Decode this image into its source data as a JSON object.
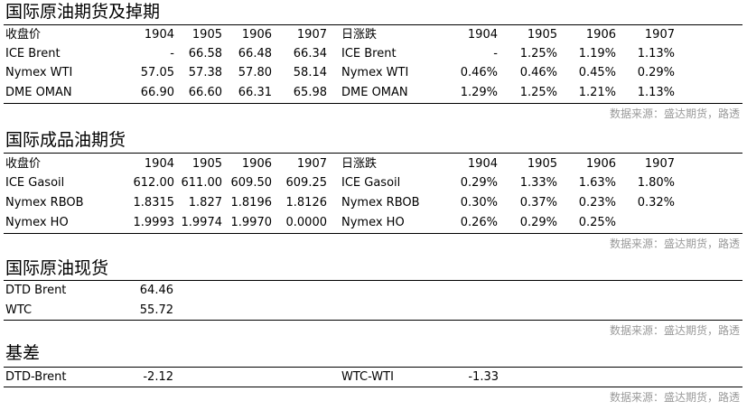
{
  "crude_futures": {
    "title": "国际原油期货及掉期",
    "settle_label": "收盘价",
    "change_label": "日涨跌",
    "months": [
      "1904",
      "1905",
      "1906",
      "1907"
    ],
    "rows": [
      {
        "name": "ICE Brent",
        "prices": [
          "-",
          "66.58",
          "66.48",
          "66.34"
        ],
        "changes": [
          "-",
          "1.25%",
          "1.19%",
          "1.13%"
        ]
      },
      {
        "name": "Nymex WTI",
        "prices": [
          "57.05",
          "57.38",
          "57.80",
          "58.14"
        ],
        "changes": [
          "0.46%",
          "0.46%",
          "0.45%",
          "0.29%"
        ]
      },
      {
        "name": "DME OMAN",
        "prices": [
          "66.90",
          "66.60",
          "66.31",
          "65.98"
        ],
        "changes": [
          "1.29%",
          "1.25%",
          "1.21%",
          "1.13%"
        ]
      }
    ],
    "source": "数据来源：盛达期货，路透"
  },
  "product_futures": {
    "title": "国际成品油期货",
    "settle_label": "收盘价",
    "change_label": "日涨跌",
    "months": [
      "1904",
      "1905",
      "1906",
      "1907"
    ],
    "rows": [
      {
        "name": "ICE Gasoil",
        "prices": [
          "612.00",
          "611.00",
          "609.50",
          "609.25"
        ],
        "changes": [
          "0.29%",
          "1.33%",
          "1.63%",
          "1.80%"
        ]
      },
      {
        "name": "Nymex RBOB",
        "prices": [
          "1.8315",
          "1.827",
          "1.8196",
          "1.8126"
        ],
        "changes": [
          "0.30%",
          "0.37%",
          "0.23%",
          "0.32%"
        ]
      },
      {
        "name": "Nymex HO",
        "prices": [
          "1.9993",
          "1.9974",
          "1.9970",
          "0.0000"
        ],
        "changes": [
          "0.26%",
          "0.29%",
          "0.25%",
          ""
        ]
      }
    ],
    "source": "数据来源：盛达期货，路透"
  },
  "spot": {
    "title": "国际原油现货",
    "rows": [
      {
        "name": "DTD Brent",
        "value": "64.46"
      },
      {
        "name": "WTC",
        "value": "55.72"
      }
    ],
    "source": "数据来源：盛达期货，路透"
  },
  "basis": {
    "title": "基差",
    "items": [
      {
        "name": "DTD-Brent",
        "value": "-2.12"
      },
      {
        "name": "WTC-WTI",
        "value": "-1.33"
      }
    ],
    "source": "数据来源：盛达期货，路透"
  }
}
